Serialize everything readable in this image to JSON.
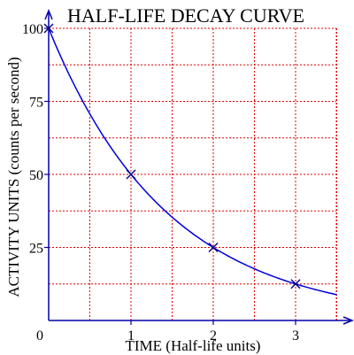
{
  "chart_data": {
    "type": "line",
    "title": "HALF-LIFE DECAY CURVE",
    "xlabel": "TIME (Half-life units)",
    "ylabel": "ACTIVITY UNITS (counts per second)",
    "xlim": [
      0,
      3.5
    ],
    "ylim": [
      0,
      100
    ],
    "x_ticks": [
      0,
      1,
      2,
      3
    ],
    "x_tick_labels": [
      "0",
      "1",
      "2",
      "3"
    ],
    "y_ticks": [
      25,
      50,
      75,
      100
    ],
    "y_tick_labels": [
      "25",
      "50",
      "75",
      "100"
    ],
    "grid": true,
    "series": [
      {
        "x": [
          0,
          0.5,
          1,
          1.5,
          2,
          2.5,
          3,
          3.5
        ],
        "y": [
          100,
          70.7,
          50,
          35.4,
          25,
          17.7,
          12.5,
          8.8
        ],
        "markers": [
          {
            "x": 0,
            "y": 100
          },
          {
            "x": 1,
            "y": 50
          },
          {
            "x": 2,
            "y": 25
          },
          {
            "x": 3,
            "y": 12.5
          }
        ]
      }
    ],
    "colors": {
      "grid": "#e00000",
      "axis": "#0000aa",
      "curve": "#0000dd",
      "marker": "#000080"
    }
  }
}
